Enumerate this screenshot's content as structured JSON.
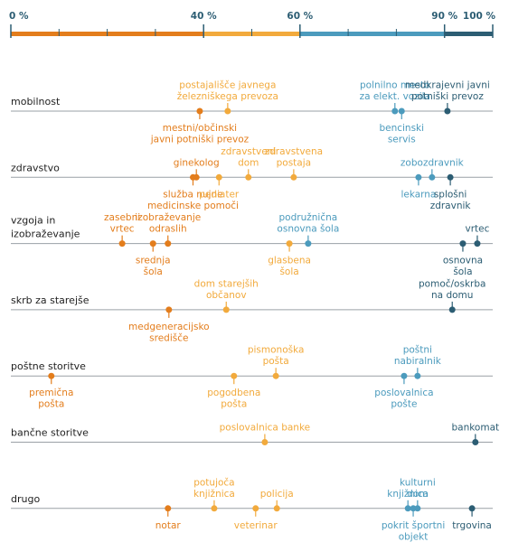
{
  "chart_data": {
    "type": "strip",
    "xlim": [
      0,
      100
    ],
    "xticks": [
      {
        "value": 0,
        "label": "0 %"
      },
      {
        "value": 40,
        "label": "40 %"
      },
      {
        "value": 60,
        "label": "60 %"
      },
      {
        "value": 90,
        "label": "90 %"
      },
      {
        "value": 100,
        "label": "100 %"
      }
    ],
    "minor_xticks": [
      10,
      20,
      30,
      50,
      70,
      80
    ],
    "band_colors": [
      "#e37d1c",
      "#f2aa3c",
      "#4c9bbd",
      "#2c5d73"
    ],
    "rows": [
      {
        "name": "mobilnost",
        "points": [
          {
            "label": "postajališče javnega\nželezniškega prevoza",
            "value": 45.0,
            "label_position": "above"
          },
          {
            "label": "mestni/občinski\njavni potniški prevoz",
            "value": 39.2,
            "label_position": "below"
          },
          {
            "label": "polnilno mesto\nza elekt. vozila",
            "value": 79.7,
            "label_position": "above"
          },
          {
            "label": "bencinski\nservis",
            "value": 81.1,
            "label_position": "below"
          },
          {
            "label": "medkrajevni javni\npotniški prevoz",
            "value": 90.6,
            "label_position": "above"
          }
        ]
      },
      {
        "name": "zdravstvo",
        "points": [
          {
            "label": "ginekolog",
            "value": 38.5,
            "label_position": "above"
          },
          {
            "label": "služba nujne\nmedicinske pomoči",
            "value": 37.8,
            "label_position": "below"
          },
          {
            "label": "zdravstveni\ndom",
            "value": 49.3,
            "label_position": "above"
          },
          {
            "label": "pediater",
            "value": 43.2,
            "label_position": "below"
          },
          {
            "label": "zdravstvena\npostaja",
            "value": 58.7,
            "label_position": "above"
          },
          {
            "label": "zobozdravnik",
            "value": 87.4,
            "label_position": "above"
          },
          {
            "label": "lekarna",
            "value": 84.6,
            "label_position": "below"
          },
          {
            "label": "splošni\nzdravnik",
            "value": 91.2,
            "label_position": "below"
          }
        ]
      },
      {
        "name": "vzgoja in\nizobraževanje",
        "points": [
          {
            "label": "zasebni\nvrtec",
            "value": 23.1,
            "label_position": "above"
          },
          {
            "label": "srednja\nšola",
            "value": 29.5,
            "label_position": "below"
          },
          {
            "label": "izobraževanje\nodraslih",
            "value": 32.6,
            "label_position": "above"
          },
          {
            "label": "glasbena\nšola",
            "value": 57.8,
            "label_position": "below"
          },
          {
            "label": "podružnična\nosnovna šola",
            "value": 61.7,
            "label_position": "above"
          },
          {
            "label": "osnovna\nšola",
            "value": 93.8,
            "label_position": "below"
          },
          {
            "label": "vrtec",
            "value": 96.8,
            "label_position": "above"
          }
        ]
      },
      {
        "name": "skrb za starejše",
        "points": [
          {
            "label": "dom starejših\nobčanov",
            "value": 44.7,
            "label_position": "above"
          },
          {
            "label": "medgeneracijsko\nsredišče",
            "value": 32.8,
            "label_position": "below"
          },
          {
            "label": "pomoč/oskrba\nna domu",
            "value": 91.6,
            "label_position": "above"
          }
        ]
      },
      {
        "name": "poštne storitve",
        "points": [
          {
            "label": "premična\npošta",
            "value": 8.4,
            "label_position": "below"
          },
          {
            "label": "pogodbena\npošta",
            "value": 46.3,
            "label_position": "below"
          },
          {
            "label": "pismonoška\npošta",
            "value": 55.0,
            "label_position": "above"
          },
          {
            "label": "poštni\nnabiralnik",
            "value": 84.4,
            "label_position": "above"
          },
          {
            "label": "poslovalnica\npošte",
            "value": 81.6,
            "label_position": "below"
          }
        ]
      },
      {
        "name": "bančne storitve",
        "points": [
          {
            "label": "poslovalnica banke",
            "value": 52.7,
            "label_position": "above"
          },
          {
            "label": "bankomat",
            "value": 96.4,
            "label_position": "above"
          }
        ]
      },
      {
        "name": "drugo",
        "points": [
          {
            "label": "notar",
            "value": 32.6,
            "label_position": "below"
          },
          {
            "label": "potujoča\nknjižnica",
            "value": 42.2,
            "label_position": "above"
          },
          {
            "label": "veterinar",
            "value": 50.8,
            "label_position": "below"
          },
          {
            "label": "policija",
            "value": 55.2,
            "label_position": "above"
          },
          {
            "label": "knjižnica",
            "value": 82.4,
            "label_position": "above"
          },
          {
            "label": "kulturni\ndom",
            "value": 84.4,
            "label_position": "above"
          },
          {
            "label": "pokrit športni\nobjekt",
            "value": 83.5,
            "label_position": "below"
          },
          {
            "label": "trgovina",
            "value": 95.7,
            "label_position": "below"
          }
        ]
      }
    ]
  }
}
